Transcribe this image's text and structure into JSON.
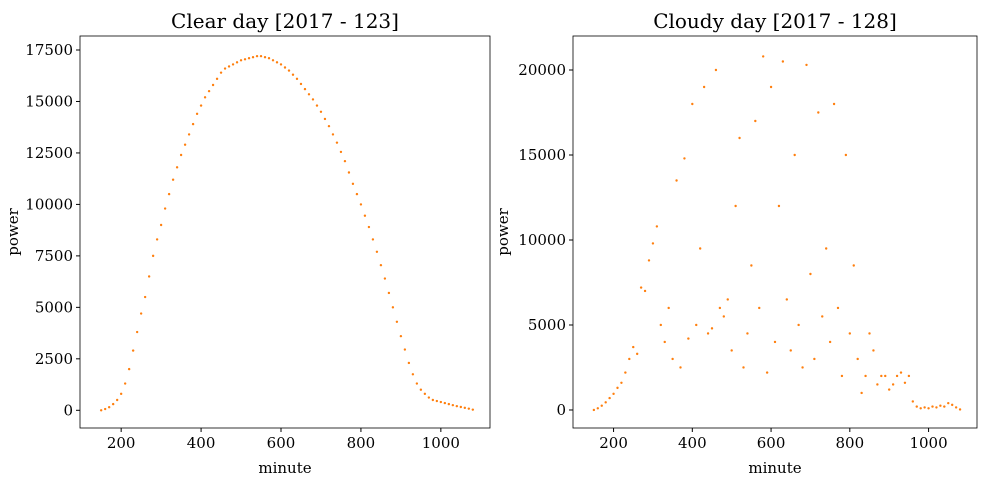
{
  "chart_data": [
    {
      "type": "scatter",
      "title": "Clear day [2017 - 123]",
      "x_label": "minute",
      "y_label": "power",
      "color": "#ff7f0e",
      "xlim": [
        97,
        1123
      ],
      "ylim": [
        -860,
        18180
      ],
      "xticks": [
        200,
        400,
        600,
        800,
        1000
      ],
      "yticks": [
        0,
        2500,
        5000,
        7500,
        10000,
        12500,
        15000,
        17500
      ],
      "x": [
        150,
        160,
        170,
        180,
        190,
        200,
        210,
        220,
        230,
        240,
        250,
        260,
        270,
        280,
        290,
        300,
        310,
        320,
        330,
        340,
        350,
        360,
        370,
        380,
        390,
        400,
        410,
        420,
        430,
        440,
        450,
        460,
        470,
        480,
        490,
        500,
        510,
        520,
        530,
        540,
        550,
        560,
        570,
        580,
        590,
        600,
        610,
        620,
        630,
        640,
        650,
        660,
        670,
        680,
        690,
        700,
        710,
        720,
        730,
        740,
        750,
        760,
        770,
        780,
        790,
        800,
        810,
        820,
        830,
        840,
        850,
        860,
        870,
        880,
        890,
        900,
        910,
        920,
        930,
        940,
        950,
        960,
        970,
        980,
        990,
        1000,
        1010,
        1020,
        1030,
        1040,
        1050,
        1060,
        1070,
        1080
      ],
      "values": [
        0,
        60,
        150,
        300,
        500,
        800,
        1300,
        2000,
        2900,
        3800,
        4700,
        5500,
        6500,
        7500,
        8300,
        9000,
        9800,
        10500,
        11200,
        11800,
        12400,
        12900,
        13400,
        13900,
        14400,
        14800,
        15200,
        15500,
        15800,
        16100,
        16400,
        16600,
        16700,
        16800,
        16900,
        17000,
        17050,
        17100,
        17150,
        17200,
        17200,
        17150,
        17100,
        17000,
        16900,
        16800,
        16650,
        16500,
        16300,
        16100,
        15850,
        15600,
        15350,
        15100,
        14800,
        14500,
        14150,
        13800,
        13400,
        13000,
        12550,
        12100,
        11550,
        11000,
        10500,
        10000,
        9450,
        8900,
        8300,
        7700,
        7050,
        6400,
        5700,
        5000,
        4300,
        3600,
        2950,
        2300,
        1750,
        1300,
        1000,
        800,
        620,
        500,
        450,
        400,
        350,
        300,
        250,
        200,
        160,
        120,
        80,
        30
      ]
    },
    {
      "type": "scatter",
      "title": "Cloudy day [2017 - 128]",
      "x_label": "minute",
      "y_label": "power",
      "color": "#ff7f0e",
      "xlim": [
        97,
        1123
      ],
      "ylim": [
        -1060,
        22000
      ],
      "xticks": [
        200,
        400,
        600,
        800,
        1000
      ],
      "yticks": [
        0,
        5000,
        10000,
        15000,
        20000
      ],
      "x": [
        150,
        160,
        170,
        180,
        190,
        200,
        210,
        220,
        230,
        240,
        250,
        260,
        270,
        280,
        290,
        300,
        310,
        320,
        330,
        340,
        350,
        360,
        370,
        380,
        390,
        400,
        410,
        420,
        430,
        440,
        450,
        460,
        470,
        480,
        490,
        500,
        510,
        520,
        530,
        540,
        550,
        560,
        570,
        580,
        590,
        600,
        610,
        620,
        630,
        640,
        650,
        660,
        670,
        680,
        690,
        700,
        710,
        720,
        730,
        740,
        750,
        760,
        770,
        780,
        790,
        800,
        810,
        820,
        830,
        840,
        850,
        860,
        870,
        880,
        890,
        900,
        910,
        920,
        930,
        940,
        950,
        960,
        970,
        980,
        990,
        1000,
        1010,
        1020,
        1030,
        1040,
        1050,
        1060,
        1070,
        1080
      ],
      "values": [
        0,
        100,
        250,
        450,
        700,
        950,
        1300,
        1600,
        2200,
        3000,
        3700,
        3300,
        7200,
        7000,
        8800,
        9800,
        10800,
        5000,
        4000,
        6000,
        3000,
        13500,
        2500,
        14800,
        4200,
        18000,
        5000,
        9500,
        19000,
        4500,
        4800,
        20000,
        6000,
        5500,
        6500,
        3500,
        12000,
        16000,
        2500,
        4500,
        8500,
        17000,
        6000,
        20800,
        2200,
        19000,
        4000,
        12000,
        20500,
        6500,
        3500,
        15000,
        5000,
        2500,
        20300,
        8000,
        3000,
        17500,
        5500,
        9500,
        4000,
        18000,
        6000,
        2000,
        15000,
        4500,
        8500,
        3000,
        1000,
        2000,
        4500,
        3500,
        1500,
        2000,
        2000,
        1200,
        1500,
        2000,
        2200,
        1600,
        2000,
        500,
        200,
        100,
        150,
        100,
        200,
        150,
        250,
        200,
        400,
        300,
        150,
        30
      ]
    }
  ]
}
